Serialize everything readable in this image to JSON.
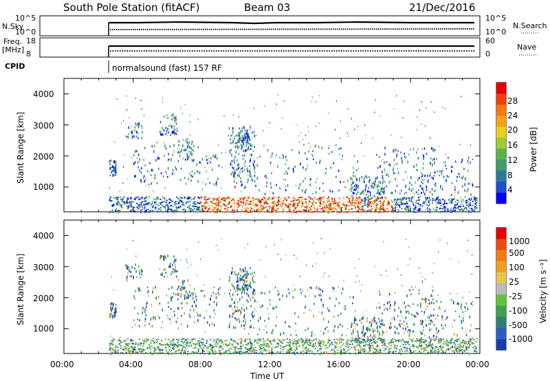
{
  "header": {
    "station": "South Pole Station (fitACF)",
    "beam": "Beam 03",
    "date": "21/Dec/2016"
  },
  "strips": {
    "nsky_label": "N.Sky",
    "nsky_ticks": [
      "10^5",
      "10^0"
    ],
    "nsearch_label": "N.Search",
    "nsearch_ticks": [
      "10^5",
      "10^0"
    ],
    "freq_label_1": "Freq.",
    "freq_label_2": "[MHz]",
    "freq_ticks": [
      "18",
      "8"
    ],
    "nave_label": "Nave",
    "nave_ticks": [
      "60",
      "0"
    ],
    "cpid_label": "CPID",
    "cpid_text": "normalsound (fast) 157 RF"
  },
  "chart_data": [
    {
      "type": "heatmap",
      "name": "power",
      "ylabel": "Slant Range [km]",
      "yticks": [
        "4000",
        "3000",
        "2000",
        "1000"
      ],
      "ylim": [
        200,
        4500
      ],
      "xlim_hours": [
        0,
        24
      ],
      "colorbar": {
        "label": "Power [dB]",
        "ticks": [
          "28",
          "24",
          "20",
          "16",
          "12",
          "8",
          "4"
        ],
        "colors": [
          "#0000ff",
          "#1f4fd0",
          "#2a7aa0",
          "#3d9a6a",
          "#5ab34a",
          "#9ccb35",
          "#e6d020",
          "#f5a315",
          "#f57810",
          "#f04010",
          "#e60000"
        ]
      }
    },
    {
      "type": "heatmap",
      "name": "velocity",
      "ylabel": "Slant Range [km]",
      "yticks": [
        "4000",
        "3000",
        "2000",
        "1000"
      ],
      "ylim": [
        200,
        4500
      ],
      "xlabel": "Time UT",
      "xticks": [
        "00:00",
        "04:00",
        "08:00",
        "12:00",
        "16:00",
        "20:00",
        "00:00"
      ],
      "xlim_hours": [
        0,
        24
      ],
      "colorbar": {
        "label": "Velocity [m s⁻¹]",
        "ticks": [
          "1000",
          "500",
          "100",
          "25",
          "-25",
          "-100",
          "-500",
          "-1000"
        ],
        "colors": [
          "#1a3ca8",
          "#2a5fc0",
          "#2f7f6e",
          "#3fa050",
          "#62c23a",
          "#bbbbbb",
          "#e7c94a",
          "#f2a020",
          "#f37a10",
          "#ee4a10",
          "#e60000"
        ]
      }
    }
  ]
}
